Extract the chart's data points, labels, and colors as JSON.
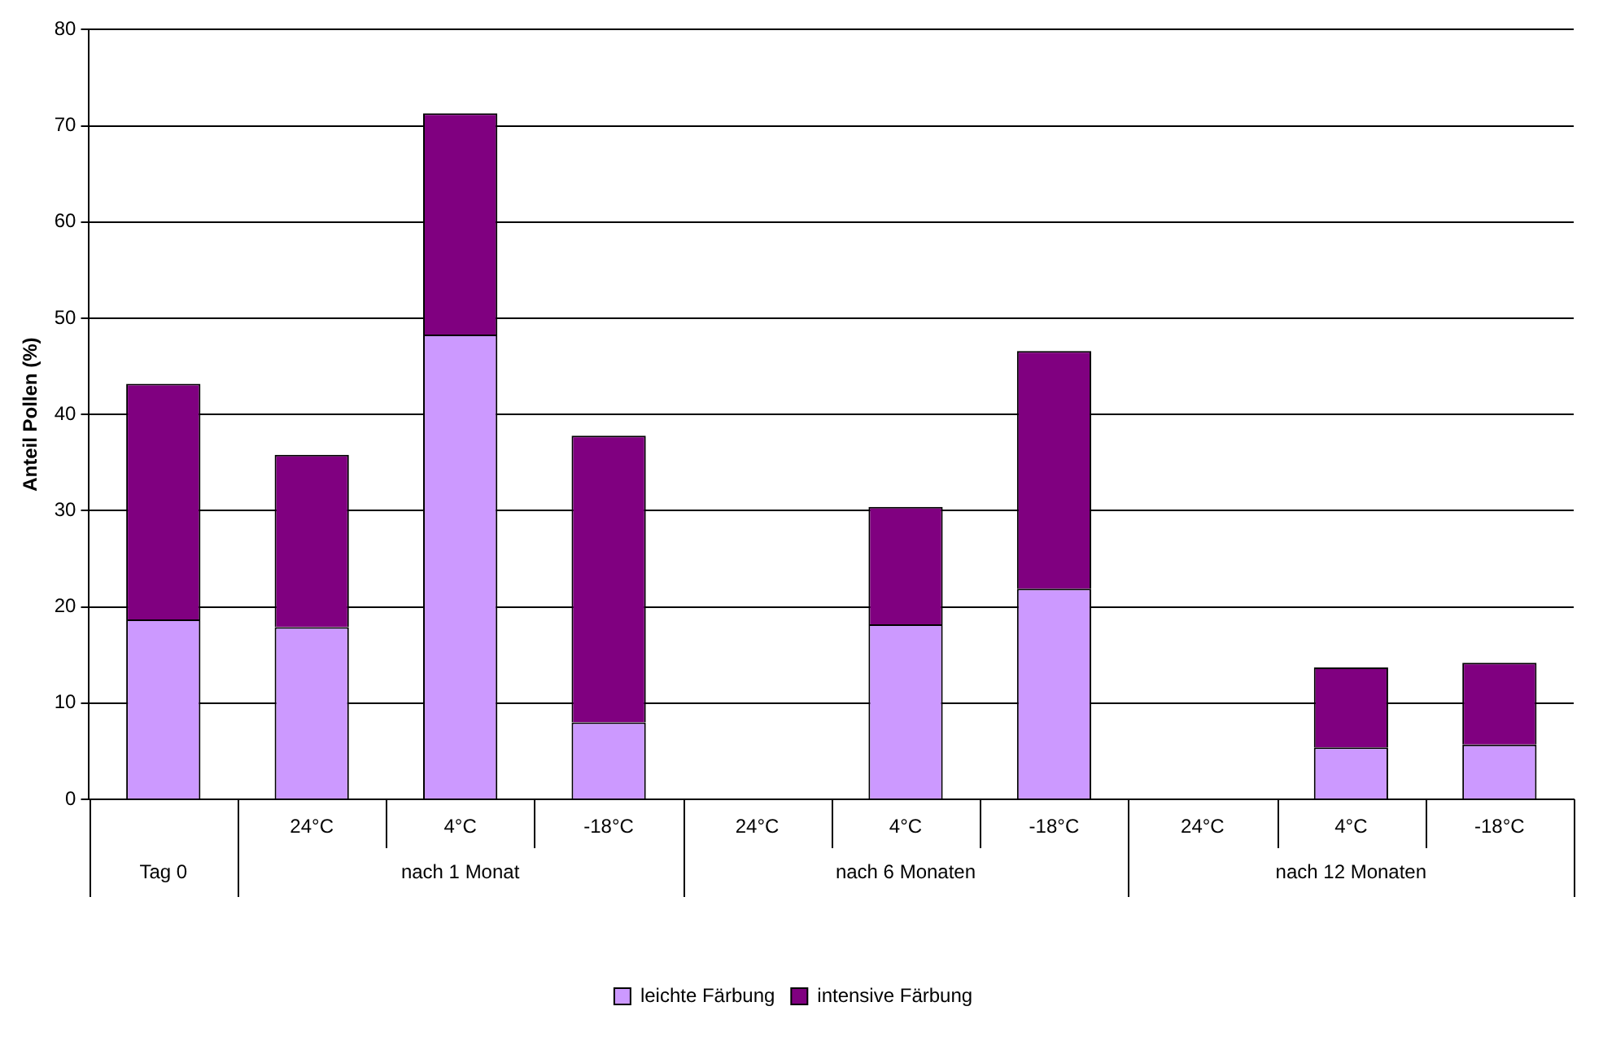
{
  "chart_data": {
    "type": "bar",
    "stacked": true,
    "ylabel": "Anteil Pollen (%)",
    "categories": [
      null,
      "24°C",
      "4°C",
      "-18°C",
      "24°C",
      "4°C",
      "-18°C",
      "24°C",
      "4°C",
      "-18°C"
    ],
    "series": [
      {
        "name": "leichte Färbung",
        "color": "#cc99ff",
        "values": [
          18.7,
          17.9,
          48.3,
          8,
          null,
          18.2,
          21.9,
          null,
          5.4,
          5.7
        ]
      },
      {
        "name": "intensive Färbung",
        "color": "#800080",
        "values": [
          24.5,
          17.9,
          23,
          29.8,
          null,
          12.2,
          24.7,
          null,
          8.3,
          8.5
        ]
      }
    ],
    "annotations": [
      "Tag 0",
      "nach 1 Monat",
      "nach 6 Monaten",
      "nach 12 Monaten"
    ],
    "ylim": [
      0,
      80
    ],
    "yticks": [
      0,
      10,
      20,
      30,
      40,
      50,
      60,
      70,
      80
    ],
    "grid": "y",
    "legend": "bottom"
  }
}
